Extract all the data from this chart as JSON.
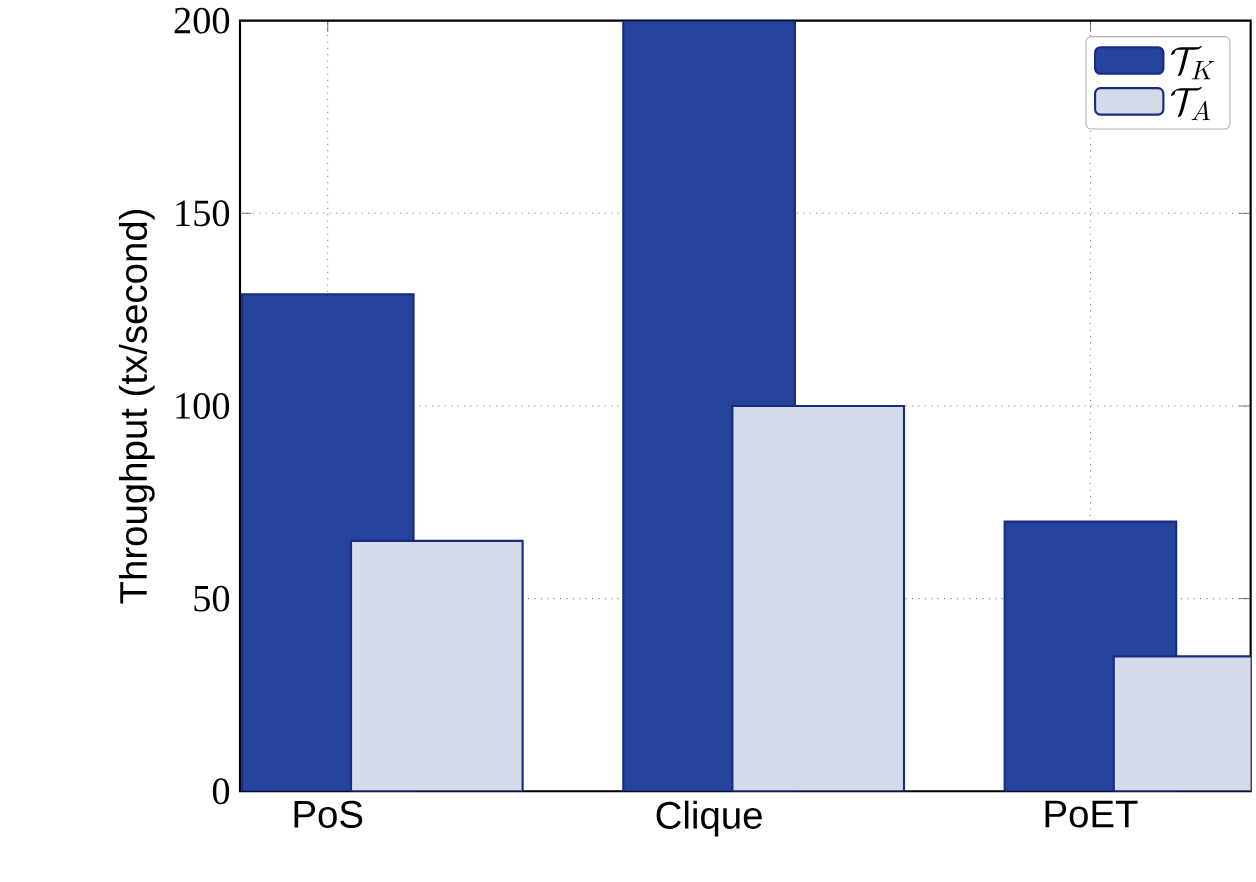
{
  "chart_data": {
    "type": "bar",
    "ylabel": "Throughput (tx/second)",
    "categories": [
      "PoS",
      "Clique",
      "PoET"
    ],
    "series": [
      {
        "name": "\\mathcal{T}_K",
        "color": "#23449a",
        "values": [
          129,
          200,
          70
        ]
      },
      {
        "name": "\\mathcal{T}_A",
        "color": "#d4dae8",
        "values": [
          65,
          100,
          35
        ]
      }
    ],
    "ylim": [
      0,
      200
    ],
    "yticks": [
      0,
      50,
      100,
      150,
      200
    ],
    "grid": true,
    "legend": "top right"
  }
}
